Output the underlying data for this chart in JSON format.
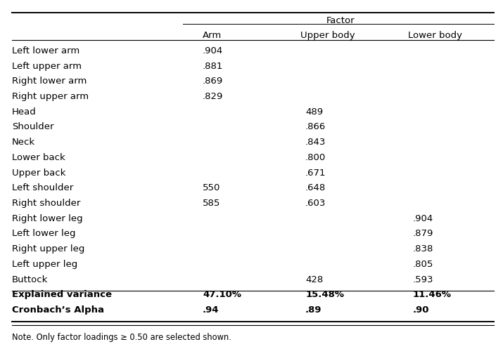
{
  "title": "Factor",
  "col_headers": [
    "",
    "Arm",
    "Upper body",
    "Lower body"
  ],
  "rows": [
    [
      "Left lower arm",
      ".904",
      "",
      ""
    ],
    [
      "Left upper arm",
      ".881",
      "",
      ""
    ],
    [
      "Right lower arm",
      ".869",
      "",
      ""
    ],
    [
      "Right upper arm",
      ".829",
      "",
      ""
    ],
    [
      "Head",
      "",
      "489",
      ""
    ],
    [
      "Shoulder",
      "",
      ".866",
      ""
    ],
    [
      "Neck",
      "",
      ".843",
      ""
    ],
    [
      "Lower back",
      "",
      ".800",
      ""
    ],
    [
      "Upper back",
      "",
      ".671",
      ""
    ],
    [
      "Left shoulder",
      "550",
      ".648",
      ""
    ],
    [
      "Right shoulder",
      "585",
      ".603",
      ""
    ],
    [
      "Right lower leg",
      "",
      "",
      ".904"
    ],
    [
      "Left lower leg",
      "",
      "",
      ".879"
    ],
    [
      "Right upper leg",
      "",
      "",
      ".838"
    ],
    [
      "Left upper leg",
      "",
      "",
      ".805"
    ],
    [
      "Buttock",
      "",
      "428",
      ".593"
    ]
  ],
  "summary_rows": [
    [
      "Explained variance",
      "47.10%",
      "15.48%",
      "11.46%"
    ],
    [
      "Cronbach’s Alpha",
      ".94",
      ".89",
      ".90"
    ]
  ],
  "note": "Note. Only factor loadings ≥ 0.50 are selected shown.",
  "bg_color": "#ffffff",
  "text_color": "#000000",
  "header_fontsize": 9.5,
  "body_fontsize": 9.5
}
